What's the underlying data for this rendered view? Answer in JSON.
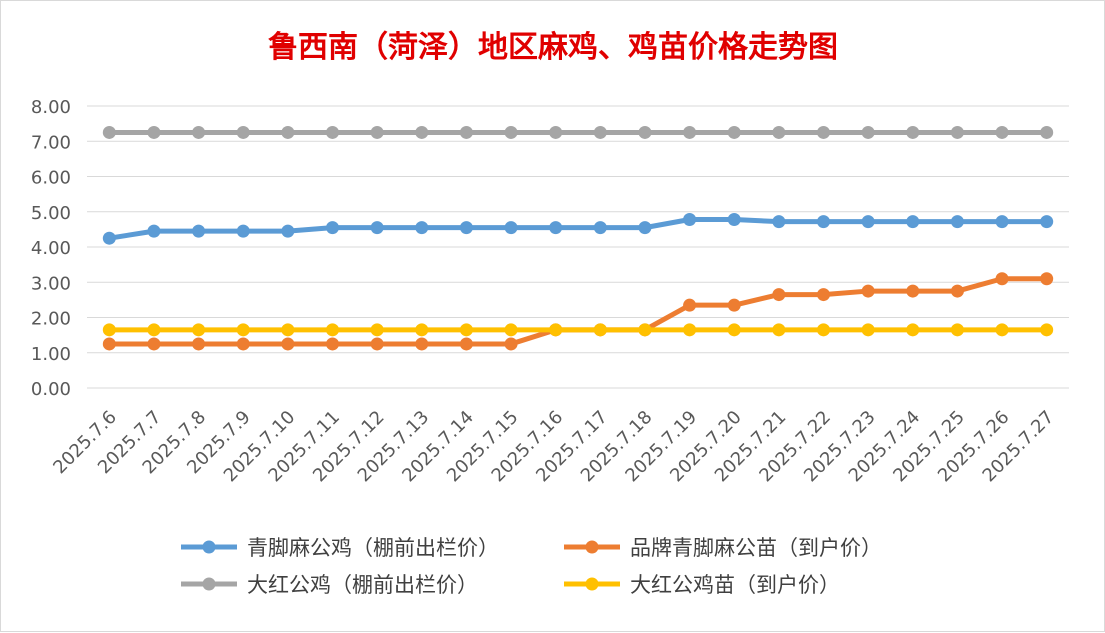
{
  "chart_data": {
    "type": "line",
    "title": "鲁西南（菏泽）地区麻鸡、鸡苗价格走势图",
    "xlabel": "",
    "ylabel": "",
    "ylim": [
      0,
      8
    ],
    "y_ticks": [
      "0.00",
      "1.00",
      "2.00",
      "3.00",
      "4.00",
      "5.00",
      "6.00",
      "7.00",
      "8.00"
    ],
    "grid": true,
    "legend_position": "bottom",
    "categories": [
      "2025.7.6",
      "2025.7.7",
      "2025.7.8",
      "2025.7.9",
      "2025.7.10",
      "2025.7.11",
      "2025.7.12",
      "2025.7.13",
      "2025.7.14",
      "2025.7.15",
      "2025.7.16",
      "2025.7.17",
      "2025.7.18",
      "2025.7.19",
      "2025.7.20",
      "2025.7.21",
      "2025.7.22",
      "2025.7.23",
      "2025.7.24",
      "2025.7.25",
      "2025.7.26",
      "2025.7.27"
    ],
    "series": [
      {
        "name": "青脚麻公鸡（棚前出栏价）",
        "color": "#5b9bd5",
        "values": [
          4.25,
          4.45,
          4.45,
          4.45,
          4.45,
          4.55,
          4.55,
          4.55,
          4.55,
          4.55,
          4.55,
          4.55,
          4.55,
          4.78,
          4.78,
          4.72,
          4.72,
          4.72,
          4.72,
          4.72,
          4.72,
          4.72
        ]
      },
      {
        "name": "品牌青脚麻公苗（到户价）",
        "color": "#ed7d31",
        "values": [
          1.25,
          1.25,
          1.25,
          1.25,
          1.25,
          1.25,
          1.25,
          1.25,
          1.25,
          1.25,
          1.65,
          1.65,
          1.65,
          2.35,
          2.35,
          2.65,
          2.65,
          2.75,
          2.75,
          2.75,
          3.1,
          3.1
        ]
      },
      {
        "name": "大红公鸡（棚前出栏价）",
        "color": "#a5a5a5",
        "values": [
          7.25,
          7.25,
          7.25,
          7.25,
          7.25,
          7.25,
          7.25,
          7.25,
          7.25,
          7.25,
          7.25,
          7.25,
          7.25,
          7.25,
          7.25,
          7.25,
          7.25,
          7.25,
          7.25,
          7.25,
          7.25,
          7.25
        ]
      },
      {
        "name": "大红公鸡苗（到户价）",
        "color": "#ffc000",
        "values": [
          1.65,
          1.65,
          1.65,
          1.65,
          1.65,
          1.65,
          1.65,
          1.65,
          1.65,
          1.65,
          1.65,
          1.65,
          1.65,
          1.65,
          1.65,
          1.65,
          1.65,
          1.65,
          1.65,
          1.65,
          1.65,
          1.65
        ]
      }
    ]
  }
}
